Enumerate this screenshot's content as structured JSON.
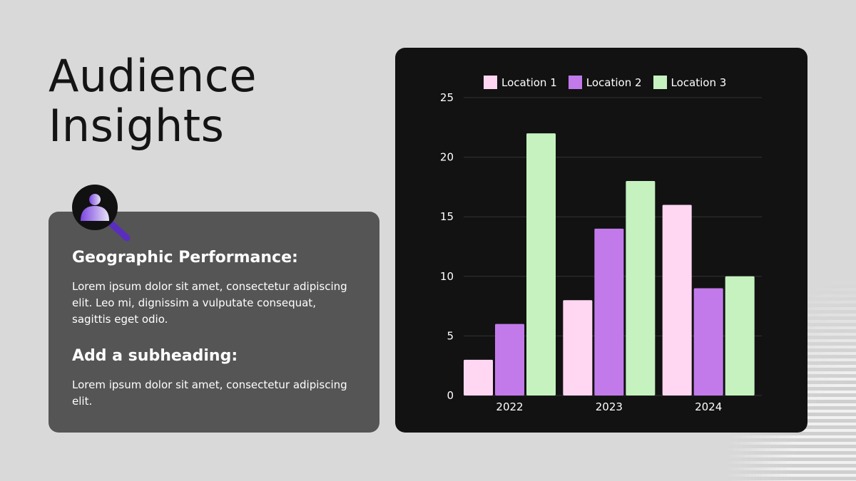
{
  "title": {
    "line1": "Audience",
    "line2": "Insights"
  },
  "card": {
    "heading1": "Geographic Performance:",
    "body1": "Lorem ipsum dolor sit amet, consectetur adipiscing elit. Leo mi, dignissim a vulputate consequat, sagittis eget odio.",
    "heading2": "Add a subheading:",
    "body2": "Lorem ipsum dolor sit amet, consectetur adipiscing elit."
  },
  "colors": {
    "background": "#d9d9d9",
    "card": "#555555",
    "chart_background": "#121212",
    "location1": "#ffd7f3",
    "location2": "#c27aeb",
    "location3": "#c5f2bf",
    "icon_accent": "#5a2dbf"
  },
  "icons": {
    "badge": "person-search-icon"
  },
  "chart_data": {
    "type": "bar",
    "categories": [
      "2022",
      "2023",
      "2024"
    ],
    "series": [
      {
        "name": "Location 1",
        "values": [
          3,
          8,
          16
        ],
        "color": "#ffd7f3"
      },
      {
        "name": "Location 2",
        "values": [
          6,
          14,
          9
        ],
        "color": "#c27aeb"
      },
      {
        "name": "Location 3",
        "values": [
          22,
          18,
          10
        ],
        "color": "#c5f2bf"
      }
    ],
    "ylim": [
      0,
      25
    ],
    "yticks": [
      "0",
      "5",
      "10",
      "15",
      "20",
      "25"
    ],
    "legend": "top",
    "grid": true
  }
}
